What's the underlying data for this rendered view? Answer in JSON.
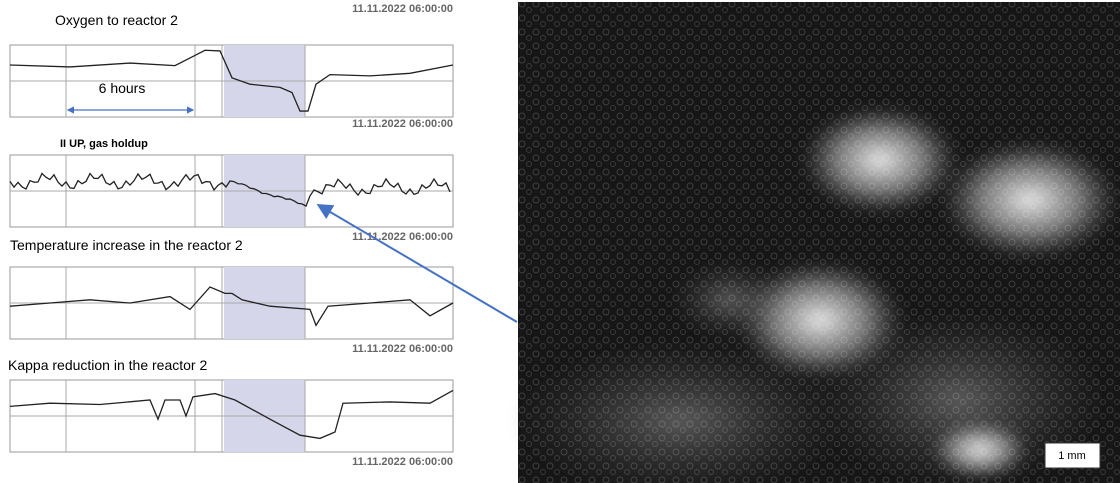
{
  "panels": [
    {
      "title": "Oxygen to reactor 2",
      "annotation": "6 hours"
    },
    {
      "title": "II UP, gas holdup"
    },
    {
      "title": "Temperature increase in the reactor 2"
    },
    {
      "title": "Kappa reduction in the reactor 2"
    }
  ],
  "timestamps": [
    "11.11.2022 06:00:00",
    "11.11.2022 06:00:00",
    "11.11.2022 06:00:00",
    "11.11.2022 06:00:00",
    "11.11.2022 06:00:00"
  ],
  "image": {
    "scale_label": "1 mm"
  }
}
